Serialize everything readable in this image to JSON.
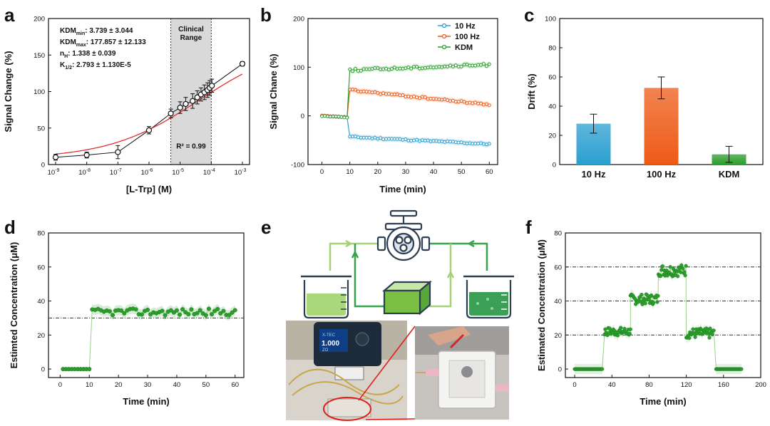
{
  "panel_labels": [
    "a",
    "b",
    "c",
    "d",
    "e",
    "f"
  ],
  "colors": {
    "blue": "#2a9fd0",
    "orange": "#ee5a16",
    "green": "#2c9e2c",
    "red_fit": "#e03030",
    "shade": "#d9d9d9",
    "beaker_light": "#a9d77a",
    "beaker_dark": "#3c9f56",
    "tank": "#7bc043",
    "pipe_light": "#a4d279",
    "pipe_dark": "#34a34a"
  },
  "chart_data": [
    {
      "id": "a",
      "type": "scatter",
      "xscale": "log",
      "xlabel": "[L-Trp] (M)",
      "ylabel": "Signal Change (%)",
      "xlim_exp": [
        -9,
        -3
      ],
      "ylim": [
        0,
        200
      ],
      "yticks": [
        0,
        50,
        100,
        150,
        200
      ],
      "xticks": [
        {
          "base": "10",
          "exp": "-9"
        },
        {
          "base": "10",
          "exp": "-8"
        },
        {
          "base": "10",
          "exp": "-7"
        },
        {
          "base": "10",
          "exp": "-6"
        },
        {
          "base": "10",
          "exp": "-5"
        },
        {
          "base": "10",
          "exp": "-4"
        },
        {
          "base": "10",
          "exp": "-3"
        }
      ],
      "points": [
        {
          "log10_x": -9,
          "y": 10,
          "err": 4
        },
        {
          "log10_x": -8,
          "y": 13,
          "err": 4
        },
        {
          "log10_x": -7,
          "y": 17,
          "err": 9
        },
        {
          "log10_x": -6,
          "y": 47,
          "err": 5
        },
        {
          "log10_x": -5.3,
          "y": 70,
          "err": 6
        },
        {
          "log10_x": -5,
          "y": 78,
          "err": 8
        },
        {
          "log10_x": -4.82,
          "y": 83,
          "err": 9
        },
        {
          "log10_x": -4.6,
          "y": 87,
          "err": 10
        },
        {
          "log10_x": -4.45,
          "y": 92,
          "err": 9
        },
        {
          "log10_x": -4.33,
          "y": 96,
          "err": 9
        },
        {
          "log10_x": -4.22,
          "y": 99,
          "err": 10
        },
        {
          "log10_x": -4.12,
          "y": 102,
          "err": 10
        },
        {
          "log10_x": -4.05,
          "y": 105,
          "err": 10
        },
        {
          "log10_x": -3.98,
          "y": 108,
          "err": 9
        },
        {
          "log10_x": -3,
          "y": 138,
          "err": 3
        }
      ],
      "fit": {
        "y0": 8,
        "ymax": 168,
        "log10_k": -4.4,
        "n": 0.3
      },
      "shaded_range_exp": [
        -5.3,
        -4
      ],
      "shaded_label": [
        "Clinical",
        "Range"
      ],
      "r2_label": "R² = 0.99",
      "stats": [
        {
          "base": "KDM",
          "sub": "min",
          "text": ": 3.739 ± 3.044"
        },
        {
          "base": "KDM",
          "sub": "max",
          "text": ": 177.857 ± 12.133"
        },
        {
          "base": "n",
          "sub": "H",
          "text": ": 1.338 ± 0.039"
        },
        {
          "base": "K",
          "sub": "1/2",
          "text": ": 2.793 ± 1.130E-5"
        }
      ]
    },
    {
      "id": "b",
      "type": "line",
      "xlabel": "Time (min)",
      "ylabel": "Signal Chane (%)",
      "xlim": [
        -5,
        63
      ],
      "ylim": [
        -100,
        200
      ],
      "xticks": [
        0,
        10,
        20,
        30,
        40,
        50,
        60
      ],
      "yticks": [
        -100,
        0,
        100,
        200
      ],
      "series": [
        {
          "name": "10 Hz",
          "color_key": "blue",
          "pre": 0,
          "post_start": -43,
          "post_end": -58,
          "noise": 1.5
        },
        {
          "name": "100 Hz",
          "color_key": "orange",
          "pre": 0,
          "post_start": 53,
          "post_end": 23,
          "noise": 1.8
        },
        {
          "name": "KDM",
          "color_key": "green",
          "pre": 0,
          "post_start": 94,
          "post_end": 105,
          "noise": 2.5
        }
      ],
      "step_time": 10,
      "t_end": 60
    },
    {
      "id": "c",
      "type": "bar",
      "ylabel": "Drift (%)",
      "ylim": [
        0,
        100
      ],
      "yticks": [
        0,
        20,
        40,
        60,
        80,
        100
      ],
      "categories": [
        "10 Hz",
        "100 Hz",
        "KDM"
      ],
      "values": [
        28,
        52.5,
        7
      ],
      "errors": [
        6.5,
        7.5,
        5.5
      ],
      "color_keys": [
        "blue",
        "orange",
        "green"
      ]
    },
    {
      "id": "d",
      "type": "scatter",
      "xlabel": "Time (min)",
      "ylabel": "Estimted Concentration (μM)",
      "xlim": [
        -4,
        63
      ],
      "ylim": [
        -5,
        80
      ],
      "xticks": [
        0,
        10,
        20,
        30,
        40,
        50,
        60
      ],
      "yticks": [
        0,
        20,
        40,
        60,
        80
      ],
      "reference_line": 30,
      "baseline": 0,
      "step_time": 10,
      "plateau": 33.5,
      "noise": 2,
      "t_start": 1,
      "t_end": 60
    },
    {
      "id": "f",
      "type": "scatter",
      "xlabel": "Time (min)",
      "ylabel": "Estimated Concentration (μM)",
      "xlim": [
        -10,
        200
      ],
      "ylim": [
        -5,
        80
      ],
      "xticks": [
        0,
        40,
        80,
        120,
        160,
        200
      ],
      "yticks": [
        0,
        20,
        40,
        60,
        80
      ],
      "reference_lines": [
        20,
        40,
        60
      ],
      "segments": [
        {
          "t0": 0,
          "t1": 30,
          "level": 0,
          "noise": 0
        },
        {
          "t0": 32,
          "t1": 60,
          "level": 22,
          "noise": 2.5
        },
        {
          "t0": 60,
          "t1": 90,
          "level": 41,
          "noise": 3
        },
        {
          "t0": 90,
          "t1": 120,
          "level": 58,
          "noise": 3.5
        },
        {
          "t0": 120,
          "t1": 150,
          "level": 21,
          "noise": 3
        },
        {
          "t0": 152,
          "t1": 180,
          "level": 0,
          "noise": 0
        }
      ]
    }
  ],
  "panel_e": {
    "device_screen_label": "X-TEC",
    "device_value": "1.000",
    "device_sub": "ZO"
  }
}
